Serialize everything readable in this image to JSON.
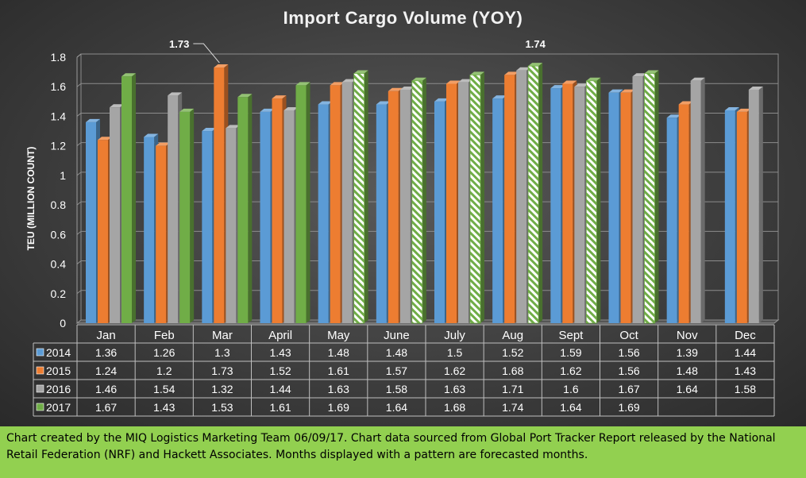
{
  "chart_data": {
    "type": "bar",
    "title": "Import Cargo Volume (YOY)",
    "ylabel": "TEU (MILLION COUNT)",
    "xlabel": "",
    "ylim": [
      0,
      1.8
    ],
    "yticks": [
      "0",
      "0.2",
      "0.4",
      "0.6",
      "0.8",
      "1",
      "1.2",
      "1.4",
      "1.6",
      "1.8"
    ],
    "categories": [
      "Jan",
      "Feb",
      "Mar",
      "April",
      "May",
      "June",
      "July",
      "Aug",
      "Sept",
      "Oct",
      "Nov",
      "Dec"
    ],
    "series": [
      {
        "name": "2014",
        "color": "#5b9bd5",
        "values": [
          1.36,
          1.26,
          1.3,
          1.43,
          1.48,
          1.48,
          1.5,
          1.52,
          1.59,
          1.56,
          1.39,
          1.44
        ],
        "forecast": [
          false,
          false,
          false,
          false,
          false,
          false,
          false,
          false,
          false,
          false,
          false,
          false
        ]
      },
      {
        "name": "2015",
        "color": "#ed7d31",
        "values": [
          1.24,
          1.2,
          1.73,
          1.52,
          1.61,
          1.57,
          1.62,
          1.68,
          1.62,
          1.56,
          1.48,
          1.43
        ],
        "forecast": [
          false,
          false,
          false,
          false,
          false,
          false,
          false,
          false,
          false,
          false,
          false,
          false
        ]
      },
      {
        "name": "2016",
        "color": "#a5a5a5",
        "values": [
          1.46,
          1.54,
          1.32,
          1.44,
          1.63,
          1.58,
          1.63,
          1.71,
          1.6,
          1.67,
          1.64,
          1.58
        ],
        "forecast": [
          false,
          false,
          false,
          false,
          false,
          false,
          false,
          false,
          false,
          false,
          false,
          false
        ]
      },
      {
        "name": "2017",
        "color": "#70ad47",
        "values": [
          1.67,
          1.43,
          1.53,
          1.61,
          1.69,
          1.64,
          1.68,
          1.74,
          1.64,
          1.69,
          null,
          null
        ],
        "forecast": [
          false,
          false,
          false,
          false,
          true,
          true,
          true,
          true,
          true,
          true,
          false,
          false
        ]
      }
    ],
    "annotations": [
      {
        "text": "1.73",
        "category": "Mar",
        "series": "2015",
        "value": 1.73
      },
      {
        "text": "1.74",
        "category": "Aug",
        "series": "2017",
        "value": 1.74
      }
    ],
    "data_table": true,
    "grid": true,
    "legend": "data-table"
  },
  "footnote": "Chart created by the MIQ Logistics Marketing Team 06/09/17. Chart data sourced from Global Port Tracker Report released by the National Retail Federation (NRF) and Hackett Associates. Months displayed with a pattern are forecasted months."
}
